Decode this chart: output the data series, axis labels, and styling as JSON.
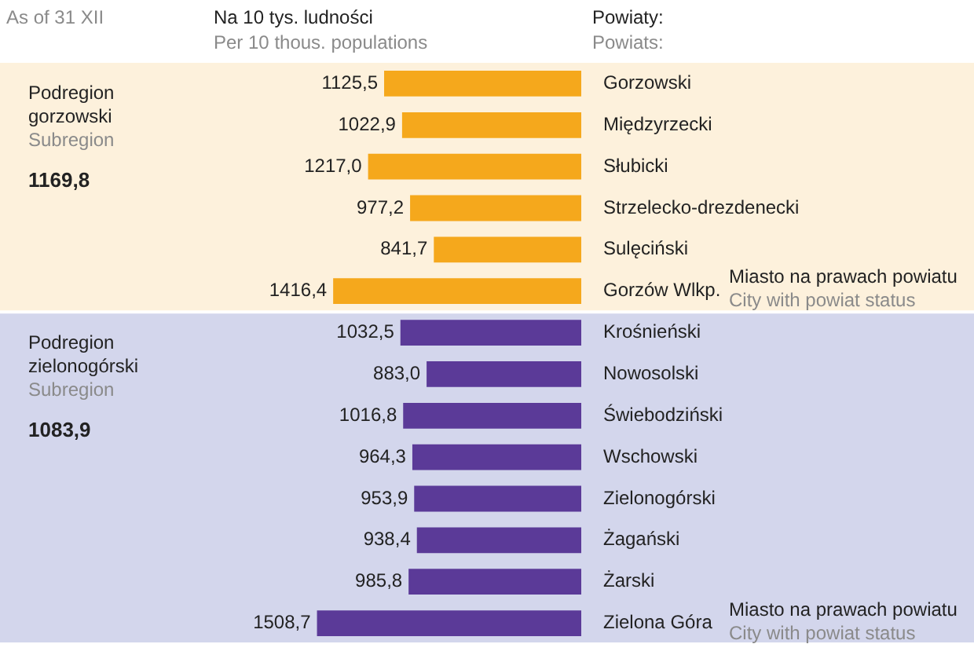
{
  "chart_data": {
    "type": "bar",
    "orientation": "horizontal",
    "title": "Na 10 tys. ludności",
    "subtitle": "Per 10 thous. populations",
    "ylabel": "Powiaty:",
    "categories": [
      "Gorzowski",
      "Międzyrzecki",
      "Słubicki",
      "Strzelecko-drezdenecki",
      "Sulęciński",
      "Gorzów Wlkp.",
      "Krośnieński",
      "Nowosolski",
      "Świebodziński",
      "Wschowski",
      "Zielonogórski",
      "Żagański",
      "Żarski",
      "Zielona Góra"
    ],
    "values": [
      1125.5,
      1022.9,
      1217.0,
      977.2,
      841.7,
      1416.4,
      1032.5,
      883.0,
      1016.8,
      964.3,
      953.9,
      938.4,
      985.8,
      1508.7
    ],
    "value_labels": [
      "1125,5",
      "1022,9",
      "1217,0",
      "977,2",
      "841,7",
      "1416,4",
      "1032,5",
      "883,0",
      "1016,8",
      "964,3",
      "953,9",
      "938,4",
      "985,8",
      "1508,7"
    ],
    "colors": [
      "#f5a81c",
      "#f5a81c",
      "#f5a81c",
      "#f5a81c",
      "#f5a81c",
      "#f5a81c",
      "#5b3a98",
      "#5b3a98",
      "#5b3a98",
      "#5b3a98",
      "#5b3a98",
      "#5b3a98",
      "#5b3a98",
      "#5b3a98"
    ],
    "tick_labels": "y",
    "legend": false,
    "bands": [
      {
        "axis": "y",
        "from": "Gorzowski",
        "to": "Gorzów Wlkp.",
        "label": "Podregion gorzowski",
        "color": "#fdf1dc"
      },
      {
        "axis": "y",
        "from": "Krośnieński",
        "to": "Zielona Góra",
        "label": "Podregion zielonogórski",
        "color": "#d3d6ec"
      }
    ],
    "annotations": [
      "As of 31 XII",
      "Powiats:",
      "Subregion",
      "1169,8",
      "Subregion",
      "1083,9",
      "Miasto na prawach powiatu",
      "City with powiat status",
      "Miasto na prawach powiatu",
      "City with powiat status"
    ]
  }
}
